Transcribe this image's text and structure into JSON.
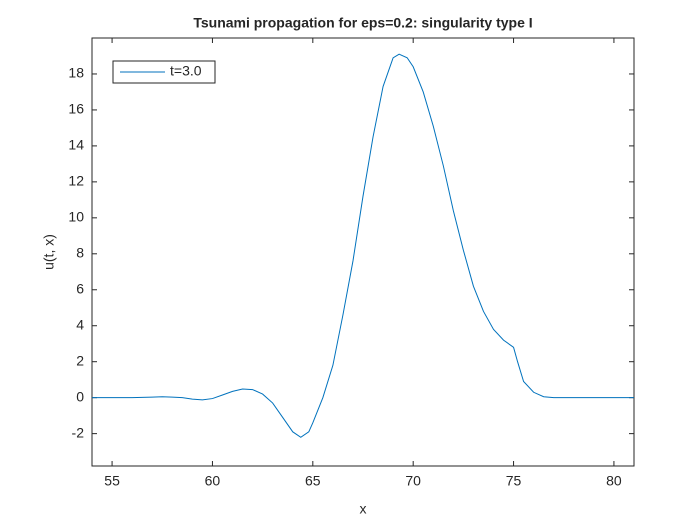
{
  "chart_data": {
    "type": "line",
    "title": "Tsunami propagation for eps=0.2: singularity type I",
    "xlabel": "x",
    "ylabel": "u(t, x)",
    "xlim": [
      54,
      81
    ],
    "ylim": [
      -3.8,
      20
    ],
    "xticks": [
      55,
      60,
      65,
      70,
      75,
      80
    ],
    "yticks": [
      -2,
      0,
      2,
      4,
      6,
      8,
      10,
      12,
      14,
      16,
      18
    ],
    "grid": false,
    "legend_position": "upper-left",
    "series": [
      {
        "name": "t=3.0",
        "color": "#0072bd",
        "x": [
          54,
          55,
          56,
          57,
          57.5,
          58,
          58.5,
          59,
          59.5,
          60,
          60.5,
          61,
          61.5,
          62,
          62.5,
          63,
          63.5,
          64,
          64.4,
          64.8,
          65,
          65.5,
          66,
          66.5,
          67,
          67.5,
          68,
          68.5,
          69,
          69.3,
          69.7,
          70,
          70.5,
          71,
          71.5,
          72,
          72.5,
          73,
          73.5,
          74,
          74.5,
          75,
          75.2,
          75.5,
          76,
          76.5,
          77,
          78,
          79,
          80,
          81
        ],
        "values": [
          0,
          0,
          0,
          0.03,
          0.05,
          0.03,
          0,
          -0.08,
          -0.12,
          -0.05,
          0.15,
          0.35,
          0.48,
          0.45,
          0.2,
          -0.3,
          -1.1,
          -1.9,
          -2.2,
          -1.9,
          -1.4,
          0,
          1.8,
          4.6,
          7.6,
          11.2,
          14.5,
          17.3,
          18.9,
          19.1,
          18.9,
          18.4,
          17,
          15.1,
          12.9,
          10.4,
          8.2,
          6.2,
          4.8,
          3.8,
          3.2,
          2.8,
          2.0,
          0.9,
          0.3,
          0.05,
          0,
          0,
          0,
          0,
          0
        ]
      }
    ]
  }
}
